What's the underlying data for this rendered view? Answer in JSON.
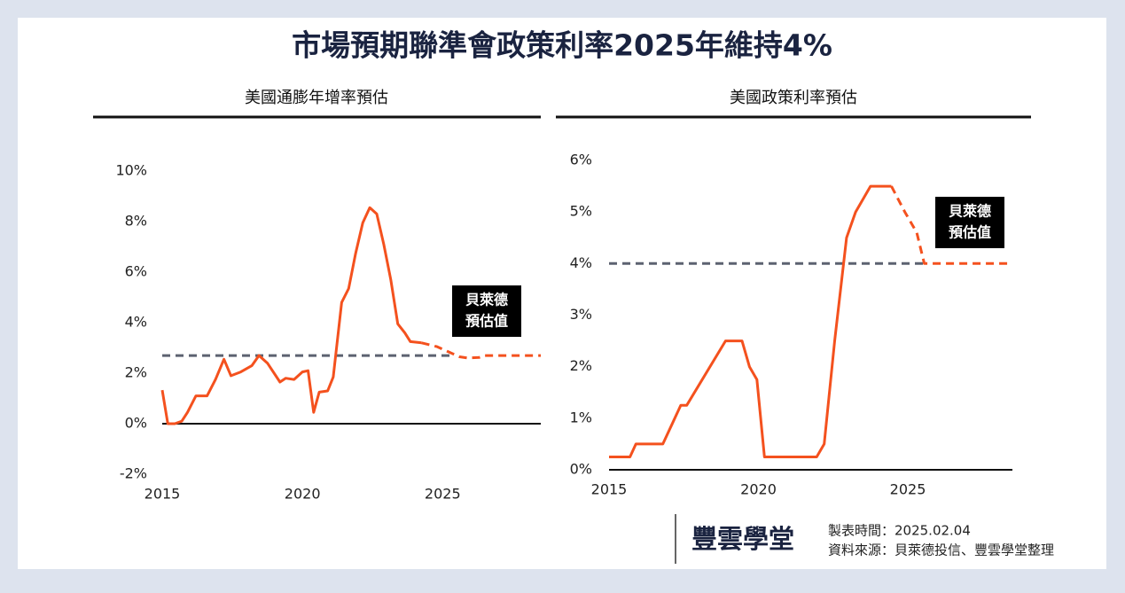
{
  "title": "市場預期聯準會政策利率2025年維持4%",
  "footer": {
    "brand": "豐雲學堂",
    "date": "製表時間：2025.02.04",
    "source": "資料來源：貝萊德投信、豐雲學堂整理"
  },
  "chart_data": [
    {
      "type": "line",
      "title": "美國通膨年增率預估",
      "xlim": [
        2015,
        2028.5
      ],
      "xticks": [
        2015,
        2020,
        2025
      ],
      "ylim": [
        -2,
        10
      ],
      "yticks": [
        {
          "value": -2,
          "label": "-2%"
        },
        {
          "value": 0,
          "label": "0%"
        },
        {
          "value": 2,
          "label": "2%"
        },
        {
          "value": 4,
          "label": "4%"
        },
        {
          "value": 6,
          "label": "6%"
        },
        {
          "value": 8,
          "label": "8%"
        },
        {
          "value": 10,
          "label": "10%"
        }
      ],
      "annotation": [
        "貝萊德",
        "預估值"
      ],
      "series": [
        {
          "color": "#5c6270",
          "style": "dashed",
          "x": [
            2015,
            2025.35
          ],
          "values": [
            2.7,
            2.7
          ]
        },
        {
          "color": "#f4511e",
          "style": "solid",
          "x": [
            2015.0,
            2015.2,
            2015.45,
            2015.7,
            2015.9,
            2016.2,
            2016.6,
            2016.9,
            2017.2,
            2017.45,
            2017.8,
            2018.2,
            2018.45,
            2018.75,
            2019.2,
            2019.4,
            2019.7,
            2020.0,
            2020.2,
            2020.4,
            2020.6,
            2020.9,
            2021.1,
            2021.4,
            2021.65,
            2021.9,
            2022.15,
            2022.4,
            2022.65,
            2022.9,
            2023.15,
            2023.4,
            2023.65,
            2023.85,
            2024.25
          ],
          "values": [
            1.33,
            0,
            0,
            0.1,
            0.45,
            1.1,
            1.1,
            1.75,
            2.55,
            1.9,
            2.05,
            2.3,
            2.7,
            2.4,
            1.65,
            1.8,
            1.75,
            2.05,
            2.1,
            0.45,
            1.25,
            1.3,
            1.85,
            4.8,
            5.35,
            6.75,
            7.95,
            8.55,
            8.3,
            7.1,
            5.7,
            3.95,
            3.6,
            3.25,
            3.2
          ]
        },
        {
          "color": "#f4511e",
          "style": "dashed",
          "x": [
            2024.25,
            2024.8,
            2025.2,
            2025.6,
            2025.9,
            2026.3,
            2026.5,
            2028.5
          ],
          "values": [
            3.2,
            3.05,
            2.85,
            2.65,
            2.6,
            2.62,
            2.7,
            2.7
          ]
        }
      ]
    },
    {
      "type": "line",
      "title": "美國政策利率預估",
      "xlim": [
        2015,
        2028.5
      ],
      "xticks": [
        2015,
        2020,
        2025
      ],
      "ylim": [
        0,
        6
      ],
      "yticks": [
        {
          "value": 0,
          "label": "0%"
        },
        {
          "value": 1,
          "label": "1%"
        },
        {
          "value": 2,
          "label": "2%"
        },
        {
          "value": 3,
          "label": "3%"
        },
        {
          "value": 4,
          "label": "4%"
        },
        {
          "value": 5,
          "label": "5%"
        },
        {
          "value": 6,
          "label": "6%"
        }
      ],
      "annotation": [
        "貝萊德",
        "預估值"
      ],
      "series": [
        {
          "color": "#5c6270",
          "style": "dashed",
          "x": [
            2015,
            2025.6
          ],
          "values": [
            4,
            4
          ]
        },
        {
          "color": "#f4511e",
          "style": "solid",
          "x": [
            2015.0,
            2015.7,
            2015.9,
            2016.8,
            2017.4,
            2017.6,
            2018.9,
            2019.45,
            2019.7,
            2019.95,
            2020.2,
            2021.95,
            2022.2,
            2022.55,
            2022.95,
            2023.25,
            2023.75,
            2024.45
          ],
          "values": [
            0.25,
            0.25,
            0.5,
            0.5,
            1.25,
            1.25,
            2.5,
            2.5,
            2.0,
            1.75,
            0.25,
            0.25,
            0.5,
            2.5,
            4.5,
            5.0,
            5.5,
            5.5
          ]
        },
        {
          "color": "#f4511e",
          "style": "dashed",
          "x": [
            2024.45,
            2024.9,
            2025.3,
            2025.55,
            2028.5
          ],
          "values": [
            5.5,
            5.0,
            4.6,
            4.0,
            4.0
          ]
        }
      ]
    }
  ]
}
